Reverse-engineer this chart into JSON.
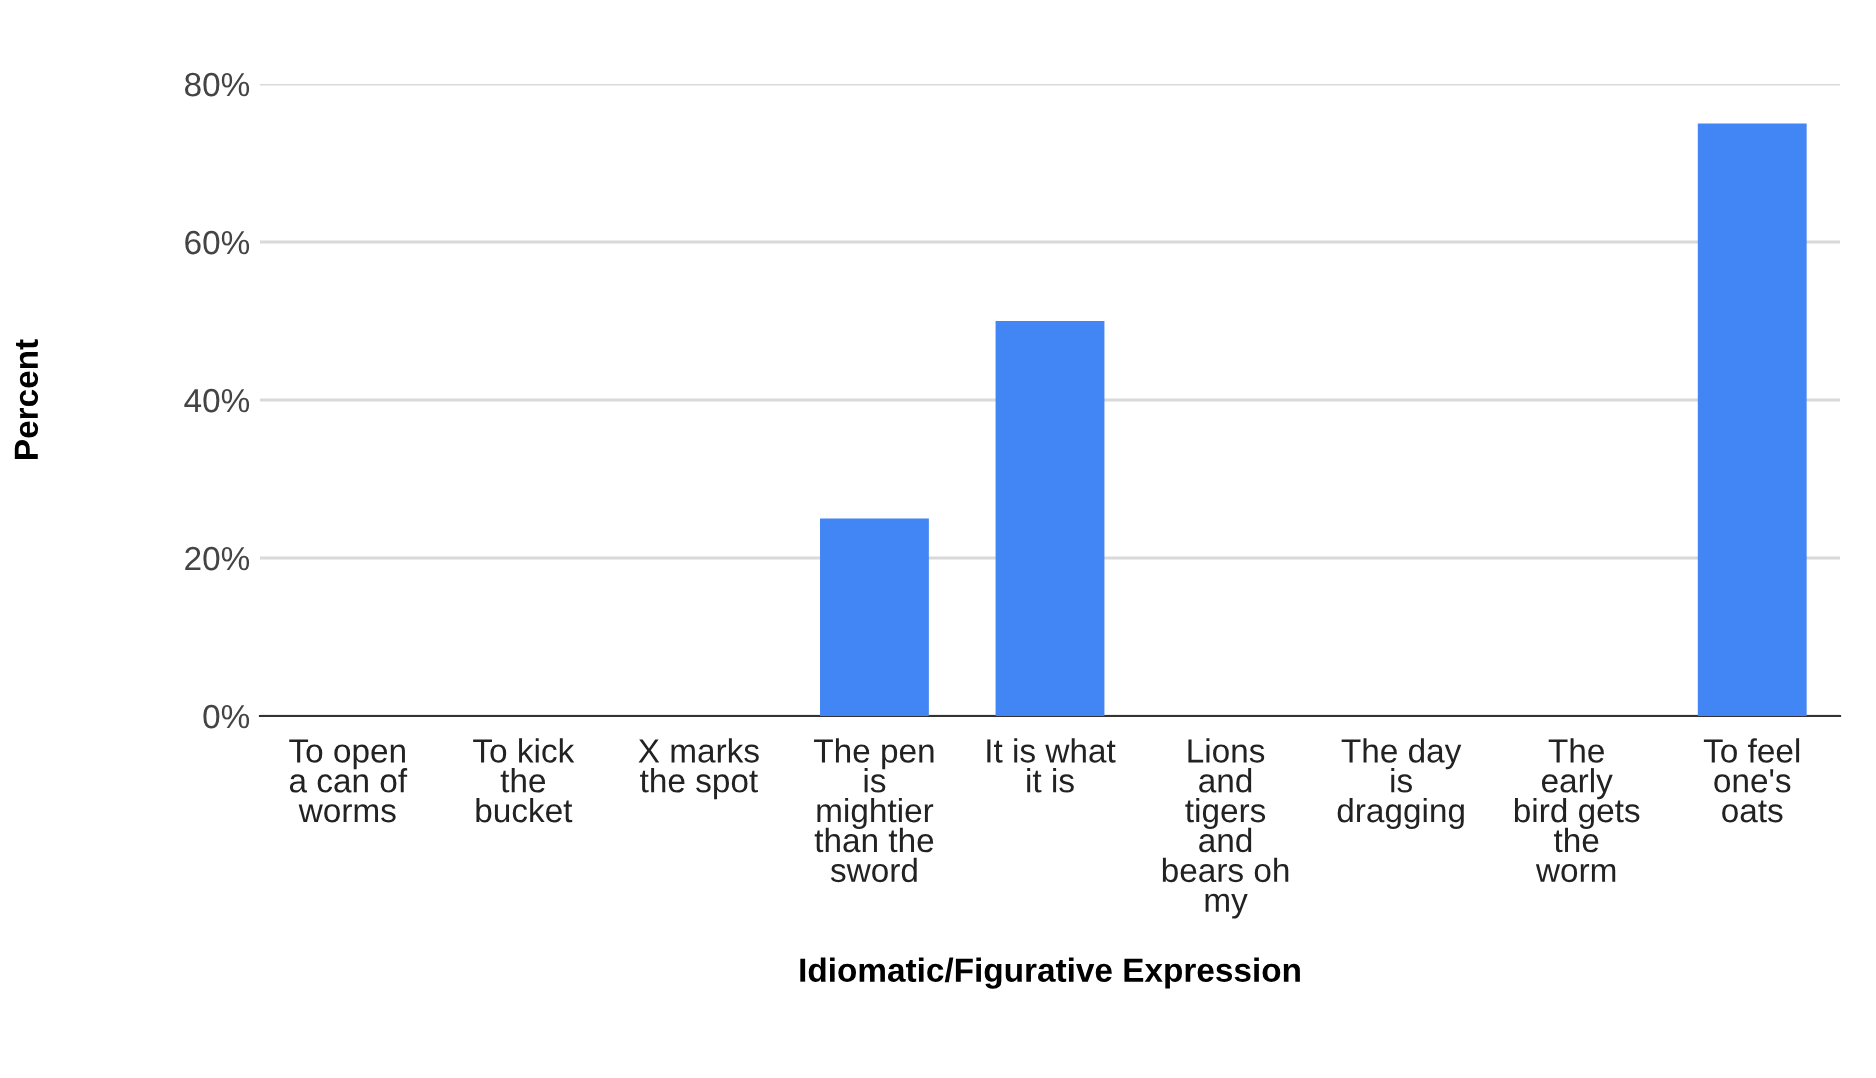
{
  "chart_data": {
    "type": "bar",
    "xlabel": "Idiomatic/Figurative Expression",
    "ylabel": "Percent",
    "categories": [
      "To open\na can of\nworms",
      "To kick\nthe\nbucket",
      "X marks\nthe spot",
      "The pen\nis\nmightier\nthan the\nsword",
      "It is what\nit is",
      "Lions\nand\ntigers\nand\nbears oh\nmy",
      "The day\nis\ndragging",
      "The\nearly\nbird gets\nthe\nworm",
      "To feel\none's\noats"
    ],
    "values": [
      0,
      0,
      0,
      25,
      50,
      0,
      0,
      0,
      75
    ],
    "color": "#4285f4",
    "ylim": [
      0,
      80
    ],
    "yticks": [
      {
        "value": 0,
        "label": "0%"
      },
      {
        "value": 20,
        "label": "20%"
      },
      {
        "value": 40,
        "label": "40%"
      },
      {
        "value": 60,
        "label": "60%"
      },
      {
        "value": 80,
        "label": "80%"
      }
    ],
    "grid": "y",
    "legend": false
  }
}
